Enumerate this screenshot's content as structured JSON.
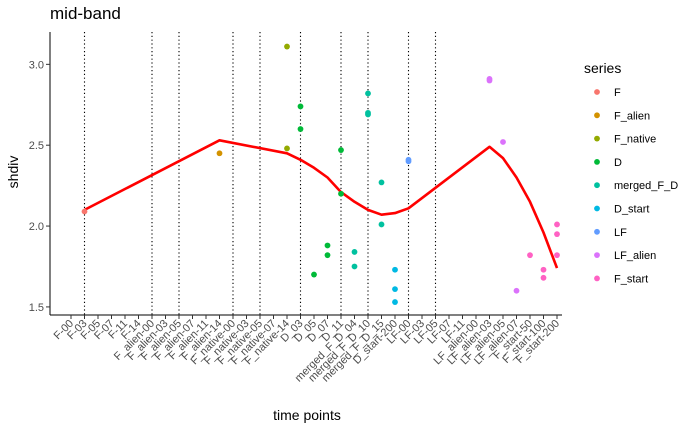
{
  "chart_data": {
    "type": "scatter",
    "title": "mid-band",
    "xlabel": "time points",
    "ylabel": "shdiv",
    "ylim": [
      1.45,
      3.2
    ],
    "yticks": [
      1.5,
      2.0,
      2.5,
      3.0
    ],
    "ytick_labels": [
      "1.5",
      "2.0",
      "2.5",
      "3.0"
    ],
    "grid": false,
    "legend_placement": "right",
    "legend_title": "series",
    "categories": [
      "F-00",
      "F-03",
      "F-05",
      "F-07",
      "F-11",
      "F-14",
      "F_alien-00",
      "F_alien-03",
      "F_alien-05",
      "F_alien-07",
      "F_alien-11",
      "F_alien-14",
      "F_native-00",
      "F_native-03",
      "F_native-05",
      "F_native-07",
      "F_native-14",
      "D_03",
      "D_05",
      "D_07",
      "D_11",
      "merged_F_D_04",
      "merged_F_D_10",
      "merged_F_D_15",
      "D_start-200",
      "LF-00",
      "LF-03",
      "LF-05",
      "LF-07",
      "LF-11",
      "LF_alien-00",
      "LF_alien-03",
      "LF_alien-05",
      "LF_alien-07",
      "F_start-50",
      "F_start-100",
      "F_start-200"
    ],
    "vlines": [
      "F-03",
      "F_alien-00",
      "F_alien-05",
      "F_native-00",
      "F_native-05",
      "D_03",
      "D_11",
      "merged_F_D_10",
      "LF-00",
      "LF-05"
    ],
    "series": [
      {
        "name": "F",
        "color": "#F8766D",
        "points": [
          {
            "x": "F-03",
            "y": 2.09
          }
        ]
      },
      {
        "name": "F_alien",
        "color": "#D39200",
        "points": [
          {
            "x": "F_alien-14",
            "y": 2.45
          }
        ]
      },
      {
        "name": "F_native",
        "color": "#93AA00",
        "points": [
          {
            "x": "F_native-14",
            "y": 3.11
          },
          {
            "x": "F_native-14",
            "y": 2.48
          }
        ]
      },
      {
        "name": "D",
        "color": "#00BA38",
        "points": [
          {
            "x": "D_03",
            "y": 2.74
          },
          {
            "x": "D_03",
            "y": 2.6
          },
          {
            "x": "D_05",
            "y": 1.7
          },
          {
            "x": "D_07",
            "y": 1.88
          },
          {
            "x": "D_07",
            "y": 1.82
          },
          {
            "x": "D_11",
            "y": 2.47
          },
          {
            "x": "D_11",
            "y": 2.2
          }
        ]
      },
      {
        "name": "merged_F_D",
        "color": "#00C19F",
        "points": [
          {
            "x": "merged_F_D_04",
            "y": 1.84
          },
          {
            "x": "merged_F_D_04",
            "y": 1.75
          },
          {
            "x": "merged_F_D_10",
            "y": 2.82
          },
          {
            "x": "merged_F_D_10",
            "y": 2.7
          },
          {
            "x": "merged_F_D_10",
            "y": 2.69
          },
          {
            "x": "merged_F_D_15",
            "y": 2.27
          },
          {
            "x": "merged_F_D_15",
            "y": 2.01
          }
        ]
      },
      {
        "name": "D_start",
        "color": "#00B9E3",
        "points": [
          {
            "x": "D_start-200",
            "y": 1.73
          },
          {
            "x": "D_start-200",
            "y": 1.61
          },
          {
            "x": "D_start-200",
            "y": 1.53
          }
        ]
      },
      {
        "name": "LF",
        "color": "#619CFF",
        "points": [
          {
            "x": "LF-00",
            "y": 2.41
          },
          {
            "x": "LF-00",
            "y": 2.4
          }
        ]
      },
      {
        "name": "LF_alien",
        "color": "#DB72FB",
        "points": [
          {
            "x": "LF_alien-03",
            "y": 2.91
          },
          {
            "x": "LF_alien-03",
            "y": 2.9
          },
          {
            "x": "LF_alien-05",
            "y": 2.52
          },
          {
            "x": "LF_alien-07",
            "y": 1.6
          }
        ]
      },
      {
        "name": "F_start",
        "color": "#FF61C3",
        "points": [
          {
            "x": "F_start-50",
            "y": 1.82
          },
          {
            "x": "F_start-100",
            "y": 1.73
          },
          {
            "x": "F_start-100",
            "y": 1.68
          },
          {
            "x": "F_start-200",
            "y": 2.01
          },
          {
            "x": "F_start-200",
            "y": 1.95
          },
          {
            "x": "F_start-200",
            "y": 1.82
          }
        ]
      }
    ],
    "trend": {
      "color": "#FF0000",
      "points": [
        {
          "x": "F-03",
          "y": 2.1
        },
        {
          "x": "F_alien-14",
          "y": 2.53
        },
        {
          "x": "F_native-14",
          "y": 2.45
        },
        {
          "x": "D_03",
          "y": 2.41
        },
        {
          "x": "D_05",
          "y": 2.36
        },
        {
          "x": "D_07",
          "y": 2.3
        },
        {
          "x": "D_11",
          "y": 2.21
        },
        {
          "x": "merged_F_D_04",
          "y": 2.15
        },
        {
          "x": "merged_F_D_10",
          "y": 2.1
        },
        {
          "x": "merged_F_D_15",
          "y": 2.07
        },
        {
          "x": "D_start-200",
          "y": 2.08
        },
        {
          "x": "LF-00",
          "y": 2.11
        },
        {
          "x": "LF_alien-03",
          "y": 2.49
        },
        {
          "x": "LF_alien-05",
          "y": 2.42
        },
        {
          "x": "LF_alien-07",
          "y": 2.3
        },
        {
          "x": "F_start-50",
          "y": 2.15
        },
        {
          "x": "F_start-100",
          "y": 1.96
        },
        {
          "x": "F_start-200",
          "y": 1.74
        }
      ]
    }
  }
}
